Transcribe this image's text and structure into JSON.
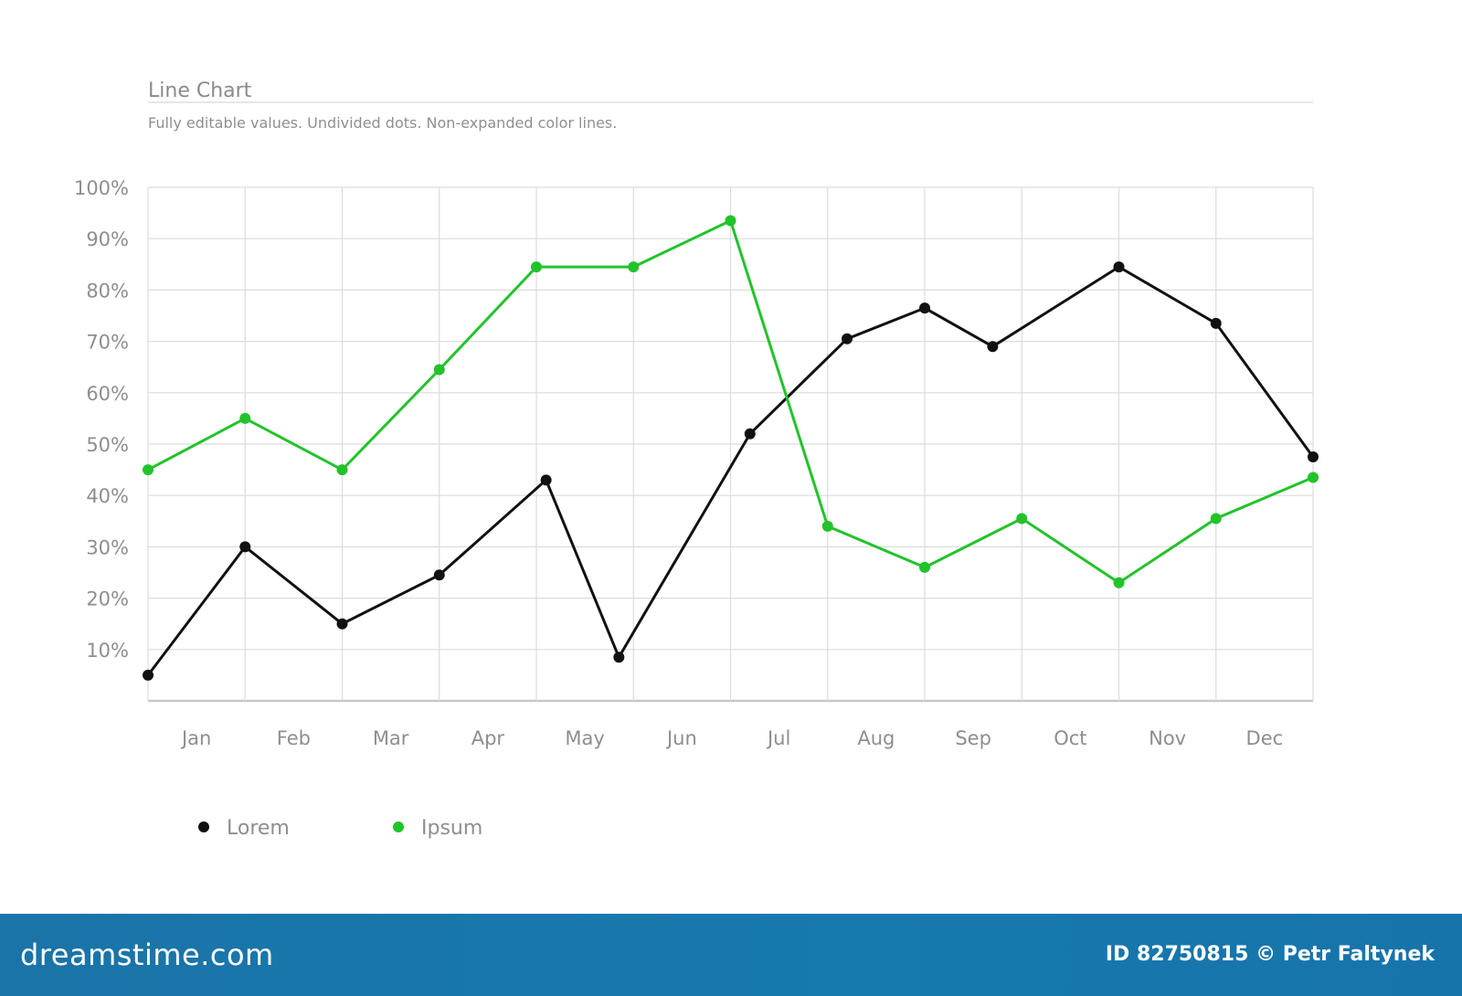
{
  "chart_data": {
    "type": "line",
    "title": "Line Chart",
    "subtitle": "Fully editable values. Undivided dots. Non-expanded color lines.",
    "xlabel": "",
    "ylabel": "",
    "ylim": [
      0,
      100
    ],
    "y_ticks": [
      "10%",
      "20%",
      "30%",
      "40%",
      "50%",
      "60%",
      "70%",
      "80%",
      "90%",
      "100%"
    ],
    "categories": [
      "Jan",
      "Feb",
      "Mar",
      "Apr",
      "May",
      "Jun",
      "Jul",
      "Aug",
      "Sep",
      "Oct",
      "Nov",
      "Dec"
    ],
    "grid": true,
    "legend_position": "bottom-left",
    "series": [
      {
        "name": "Lorem",
        "color": "#111111",
        "points": [
          {
            "x": 0,
            "y": 5
          },
          {
            "x": 1,
            "y": 30
          },
          {
            "x": 2,
            "y": 15
          },
          {
            "x": 3,
            "y": 24.5
          },
          {
            "x": 4.1,
            "y": 43
          },
          {
            "x": 4.85,
            "y": 8.5
          },
          {
            "x": 6.2,
            "y": 52
          },
          {
            "x": 7.2,
            "y": 70.5
          },
          {
            "x": 8,
            "y": 76.5
          },
          {
            "x": 8.7,
            "y": 69
          },
          {
            "x": 10,
            "y": 84.5
          },
          {
            "x": 11,
            "y": 73.5
          },
          {
            "x": 12,
            "y": 47.5
          }
        ]
      },
      {
        "name": "Ipsum",
        "color": "#22c32a",
        "points": [
          {
            "x": 0,
            "y": 45
          },
          {
            "x": 1,
            "y": 55
          },
          {
            "x": 2,
            "y": 45
          },
          {
            "x": 3,
            "y": 64.5
          },
          {
            "x": 4,
            "y": 84.5
          },
          {
            "x": 5,
            "y": 84.5
          },
          {
            "x": 6,
            "y": 93.5
          },
          {
            "x": 7,
            "y": 34
          },
          {
            "x": 8,
            "y": 26
          },
          {
            "x": 9,
            "y": 35.5
          },
          {
            "x": 10,
            "y": 23
          },
          {
            "x": 11,
            "y": 35.5
          },
          {
            "x": 12,
            "y": 43.5
          }
        ]
      }
    ]
  },
  "footer": {
    "logo_text": "dreamstime.com",
    "credit": "ID 82750815 © Petr Faltynek"
  }
}
